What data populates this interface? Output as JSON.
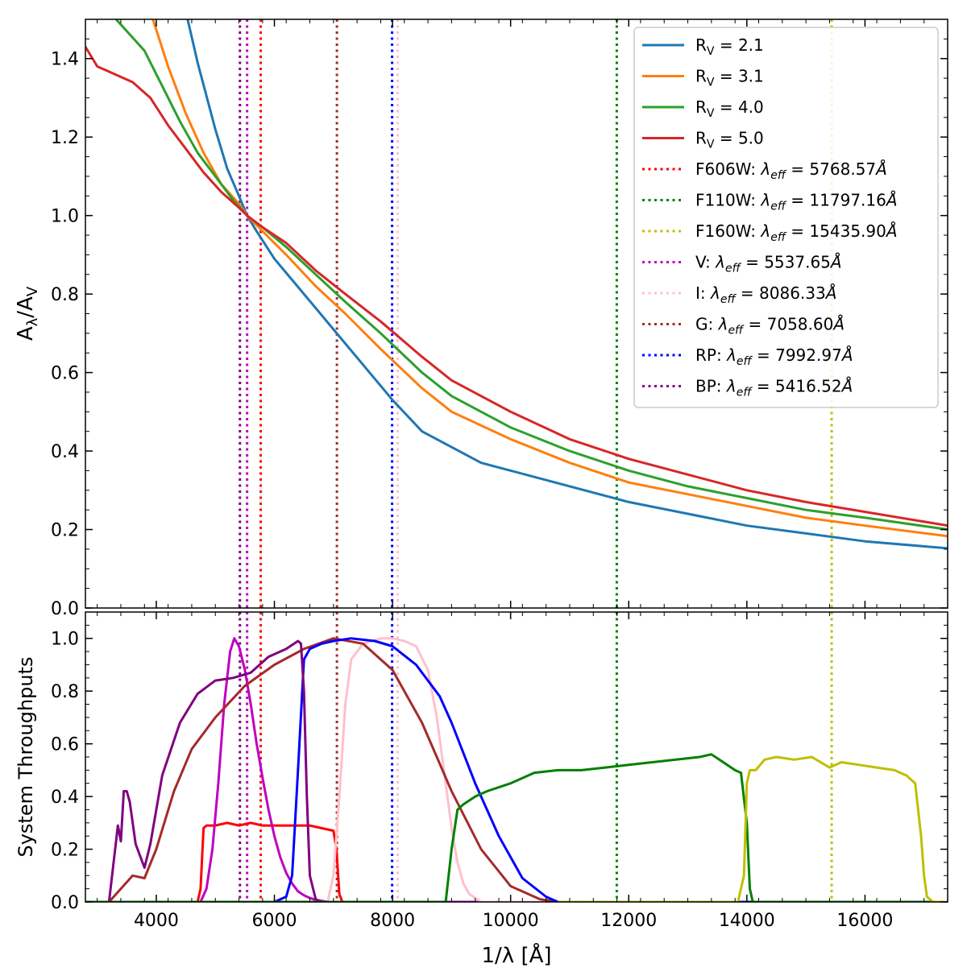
{
  "chart_data": [
    {
      "type": "line",
      "panel": "top",
      "xlabel": "1/λ [Å]",
      "ylabel": "Aλ/AV",
      "xlim": [
        2800,
        17400
      ],
      "ylim": [
        0.0,
        1.5
      ],
      "yticks": [
        "0.0",
        "0.2",
        "0.4",
        "0.6",
        "0.8",
        "1.0",
        "1.2",
        "1.4"
      ],
      "xticks": [
        "4000",
        "6000",
        "8000",
        "10000",
        "12000",
        "14000",
        "16000"
      ],
      "legend_position": "top-right",
      "series": [
        {
          "name": "R_V = 2.1",
          "label_main": "R",
          "label_sub": "V",
          "label_tail": " = 2.1",
          "color": "#1f77b4",
          "x": [
            4500,
            4700,
            5000,
            5200,
            5400,
            5537,
            5700,
            6000,
            6500,
            7000,
            7500,
            8000,
            8500,
            9000,
            9500,
            10000,
            11000,
            12000,
            13000,
            14000,
            15000,
            16000,
            17400
          ],
          "y": [
            1.52,
            1.39,
            1.22,
            1.12,
            1.05,
            1.0,
            0.96,
            0.89,
            0.8,
            0.71,
            0.62,
            0.53,
            0.45,
            0.41,
            0.37,
            0.35,
            0.31,
            0.27,
            0.24,
            0.21,
            0.19,
            0.17,
            0.152
          ]
        },
        {
          "name": "R_V = 3.1",
          "label_main": "R",
          "label_sub": "V",
          "label_tail": " = 3.1",
          "color": "#ff7f0e",
          "x": [
            3900,
            4200,
            4500,
            4800,
            5100,
            5400,
            5537,
            5800,
            6200,
            6700,
            7200,
            7800,
            8500,
            9000,
            10000,
            11000,
            12000,
            13000,
            14000,
            15000,
            16000,
            17400
          ],
          "y": [
            1.52,
            1.38,
            1.26,
            1.16,
            1.08,
            1.03,
            1.0,
            0.96,
            0.9,
            0.82,
            0.75,
            0.66,
            0.56,
            0.5,
            0.43,
            0.37,
            0.32,
            0.29,
            0.26,
            0.23,
            0.21,
            0.183
          ]
        },
        {
          "name": "R_V = 4.0",
          "label_main": "R",
          "label_sub": "V",
          "label_tail": " = 4.0",
          "color": "#2ca02c",
          "x": [
            3200,
            3500,
            3800,
            4100,
            4400,
            4700,
            5000,
            5300,
            5537,
            5800,
            6200,
            6700,
            7200,
            7800,
            8500,
            9000,
            10000,
            11000,
            12000,
            13000,
            14000,
            15000,
            16000,
            17400
          ],
          "y": [
            1.52,
            1.47,
            1.42,
            1.33,
            1.24,
            1.16,
            1.1,
            1.04,
            1.0,
            0.97,
            0.92,
            0.85,
            0.78,
            0.7,
            0.6,
            0.54,
            0.46,
            0.4,
            0.35,
            0.31,
            0.28,
            0.25,
            0.23,
            0.2
          ]
        },
        {
          "name": "R_V = 5.0",
          "label_main": "R",
          "label_sub": "V",
          "label_tail": " = 5.0",
          "color": "#d62728",
          "x": [
            2800,
            3000,
            3300,
            3600,
            3900,
            4200,
            4500,
            4800,
            5100,
            5400,
            5537,
            5800,
            6200,
            6700,
            7200,
            7800,
            8500,
            9000,
            10000,
            11000,
            12000,
            13000,
            14000,
            15000,
            16000,
            17400
          ],
          "y": [
            1.43,
            1.38,
            1.36,
            1.34,
            1.3,
            1.23,
            1.17,
            1.11,
            1.06,
            1.02,
            1.0,
            0.97,
            0.93,
            0.86,
            0.8,
            0.73,
            0.64,
            0.58,
            0.5,
            0.43,
            0.38,
            0.34,
            0.3,
            0.27,
            0.245,
            0.21
          ]
        }
      ],
      "vlines": [
        {
          "name": "F606W",
          "x": 5768.57,
          "color": "#ff0000",
          "label": "F606W: ",
          "value": "5768.57"
        },
        {
          "name": "F110W",
          "x": 11797.16,
          "color": "#008000",
          "label": "F110W: ",
          "value": "11797.16"
        },
        {
          "name": "F160W",
          "x": 15435.9,
          "color": "#bfbf00",
          "label": "F160W: ",
          "value": "15435.90"
        },
        {
          "name": "V",
          "x": 5537.65,
          "color": "#bf00bf",
          "label": "V: ",
          "value": "5537.65"
        },
        {
          "name": "I",
          "x": 8086.33,
          "color": "#ffc0cb",
          "label": "I: ",
          "value": "8086.33"
        },
        {
          "name": "G",
          "x": 7058.6,
          "color": "#a52a2a",
          "label": "G: ",
          "value": "7058.60"
        },
        {
          "name": "RP",
          "x": 7992.97,
          "color": "#0000ff",
          "label": "RP: ",
          "value": "7992.97"
        },
        {
          "name": "BP",
          "x": 5416.52,
          "color": "#800080",
          "label": "BP: ",
          "value": "5416.52"
        }
      ],
      "vline_legend_symbol": "λ",
      "vline_legend_sub": "eff",
      "vline_legend_unit": "Å"
    },
    {
      "type": "line",
      "panel": "bottom",
      "xlabel": "1/λ [Å]",
      "ylabel": "System Throughputs",
      "xlim": [
        2800,
        17400
      ],
      "ylim": [
        0.0,
        1.1
      ],
      "yticks": [
        "0.0",
        "0.2",
        "0.4",
        "0.6",
        "0.8",
        "1.0"
      ],
      "xticks": [
        "4000",
        "6000",
        "8000",
        "10000",
        "12000",
        "14000",
        "16000"
      ],
      "series": [
        {
          "name": "F606W",
          "color": "#ff0000",
          "x": [
            2800,
            4700,
            4750,
            4800,
            4850,
            5000,
            5200,
            5400,
            5600,
            5800,
            6000,
            6200,
            6400,
            6600,
            6800,
            7000,
            7050,
            7100,
            7150,
            17400
          ],
          "y": [
            0.0,
            0.0,
            0.05,
            0.28,
            0.29,
            0.29,
            0.3,
            0.29,
            0.3,
            0.29,
            0.29,
            0.29,
            0.29,
            0.29,
            0.28,
            0.27,
            0.2,
            0.03,
            0.0,
            0.0
          ]
        },
        {
          "name": "V",
          "color": "#bf00bf",
          "x": [
            2800,
            4750,
            4850,
            4950,
            5050,
            5150,
            5250,
            5320,
            5400,
            5500,
            5600,
            5700,
            5800,
            5900,
            6000,
            6100,
            6200,
            6300,
            6400,
            6500,
            6600,
            6700,
            6900,
            17400
          ],
          "y": [
            0.0,
            0.0,
            0.05,
            0.2,
            0.45,
            0.75,
            0.95,
            1.0,
            0.97,
            0.88,
            0.75,
            0.6,
            0.47,
            0.35,
            0.25,
            0.17,
            0.11,
            0.07,
            0.04,
            0.025,
            0.015,
            0.008,
            0.0,
            0.0
          ]
        },
        {
          "name": "I",
          "color": "#ffc0cb",
          "x": [
            2800,
            6900,
            7000,
            7100,
            7200,
            7300,
            7500,
            7800,
            8000,
            8200,
            8400,
            8600,
            8750,
            8900,
            9000,
            9100,
            9200,
            9300,
            9500,
            17400
          ],
          "y": [
            0.0,
            0.0,
            0.1,
            0.4,
            0.75,
            0.92,
            0.98,
            1.0,
            1.0,
            0.99,
            0.97,
            0.88,
            0.7,
            0.45,
            0.28,
            0.15,
            0.07,
            0.03,
            0.0,
            0.0
          ]
        },
        {
          "name": "G",
          "color": "#a52a2a",
          "x": [
            3200,
            3400,
            3600,
            3800,
            4000,
            4300,
            4600,
            5000,
            5500,
            6000,
            6500,
            7000,
            7500,
            8000,
            8500,
            9000,
            9500,
            10000,
            10500,
            10800
          ],
          "y": [
            0.0,
            0.05,
            0.1,
            0.09,
            0.2,
            0.42,
            0.58,
            0.7,
            0.82,
            0.9,
            0.96,
            1.0,
            0.98,
            0.88,
            0.68,
            0.42,
            0.2,
            0.06,
            0.01,
            0.0
          ]
        },
        {
          "name": "RP",
          "color": "#0000ff",
          "x": [
            2800,
            6000,
            6200,
            6300,
            6400,
            6500,
            6600,
            6800,
            7000,
            7300,
            7700,
            8000,
            8400,
            8800,
            9000,
            9400,
            9800,
            10200,
            10600,
            10800,
            17400
          ],
          "y": [
            0.0,
            0.0,
            0.02,
            0.1,
            0.5,
            0.92,
            0.96,
            0.98,
            0.99,
            1.0,
            0.99,
            0.97,
            0.9,
            0.78,
            0.68,
            0.45,
            0.25,
            0.09,
            0.02,
            0.0,
            0.0
          ]
        },
        {
          "name": "BP",
          "color": "#800080",
          "x": [
            3200,
            3350,
            3400,
            3450,
            3500,
            3550,
            3650,
            3800,
            3900,
            4100,
            4400,
            4700,
            5000,
            5300,
            5600,
            5900,
            6200,
            6400,
            6450,
            6500,
            6550,
            6600,
            6700,
            6800
          ],
          "y": [
            0.0,
            0.29,
            0.23,
            0.42,
            0.42,
            0.38,
            0.22,
            0.13,
            0.22,
            0.48,
            0.68,
            0.79,
            0.84,
            0.85,
            0.87,
            0.93,
            0.96,
            0.99,
            0.98,
            0.8,
            0.4,
            0.1,
            0.01,
            0.0
          ]
        },
        {
          "name": "F110W",
          "color": "#008000",
          "x": [
            2800,
            8900,
            9000,
            9100,
            9200,
            9400,
            9600,
            10000,
            10400,
            10800,
            11200,
            11600,
            12000,
            12400,
            12800,
            13200,
            13400,
            13600,
            13800,
            13900,
            14000,
            14050,
            14100,
            17400
          ],
          "y": [
            0.0,
            0.0,
            0.2,
            0.35,
            0.37,
            0.4,
            0.42,
            0.45,
            0.49,
            0.5,
            0.5,
            0.51,
            0.52,
            0.53,
            0.54,
            0.55,
            0.56,
            0.53,
            0.5,
            0.49,
            0.3,
            0.05,
            0.0,
            0.0
          ]
        },
        {
          "name": "F160W",
          "color": "#bfbf00",
          "x": [
            10800,
            13850,
            13950,
            14000,
            14050,
            14150,
            14300,
            14500,
            14800,
            15100,
            15400,
            15600,
            15900,
            16200,
            16500,
            16700,
            16850,
            16950,
            17000,
            17050,
            17150,
            17400
          ],
          "y": [
            0.0,
            0.0,
            0.1,
            0.45,
            0.5,
            0.5,
            0.54,
            0.55,
            0.54,
            0.55,
            0.51,
            0.53,
            0.52,
            0.51,
            0.5,
            0.48,
            0.45,
            0.25,
            0.1,
            0.02,
            0.0,
            0.0
          ]
        }
      ],
      "vlines": [
        5768.57,
        11797.16,
        15435.9,
        5537.65,
        8086.33,
        7058.6,
        7992.97,
        5416.52
      ]
    }
  ]
}
